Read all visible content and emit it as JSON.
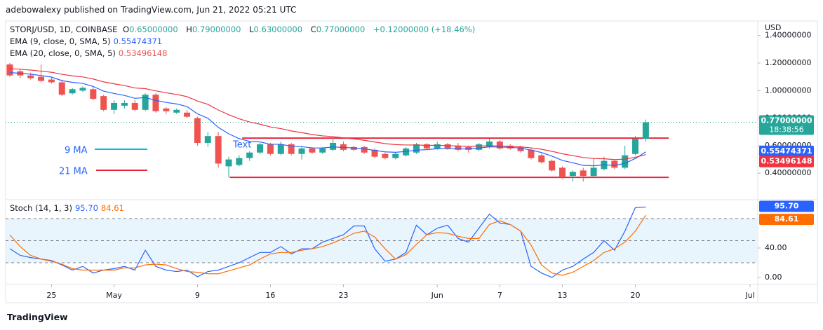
{
  "header": {
    "published": "adebowalexy published on TradingView.com, Jun 21, 2022 05:21 UTC"
  },
  "footer": "TradingView",
  "chart_data": [
    {
      "type": "candlestick",
      "title": "STORJ/USD, 1D, COINBASE",
      "currency": "USD",
      "ohlc": [
        {
          "label": "O",
          "value": "0.65000000"
        },
        {
          "label": "H",
          "value": "0.79000000"
        },
        {
          "label": "L",
          "value": "0.63000000"
        },
        {
          "label": "C",
          "value": "0.77000000"
        }
      ],
      "change": "+0.12000000 (+18.46%)",
      "x": [
        0,
        1,
        2,
        3,
        4,
        5,
        6,
        7,
        8,
        9,
        10,
        11,
        12,
        13,
        14,
        15,
        16,
        17,
        18,
        19,
        20,
        21,
        22,
        23,
        24,
        25,
        26,
        27,
        28,
        29,
        30,
        31,
        32,
        33,
        34,
        35,
        36,
        37,
        38,
        39,
        40,
        41,
        42,
        43,
        44,
        45,
        46,
        47,
        48,
        49,
        50,
        51,
        52,
        53,
        54,
        55,
        56,
        57,
        58,
        59,
        60,
        61
      ],
      "open": [
        1.19,
        1.14,
        1.11,
        1.1,
        1.08,
        1.06,
        0.98,
        1.0,
        1.01,
        0.96,
        0.86,
        0.89,
        0.91,
        0.86,
        0.97,
        0.87,
        0.84,
        0.84,
        0.8,
        0.62,
        0.67,
        0.45,
        0.46,
        0.51,
        0.55,
        0.61,
        0.54,
        0.61,
        0.54,
        0.58,
        0.55,
        0.57,
        0.61,
        0.59,
        0.59,
        0.57,
        0.54,
        0.51,
        0.53,
        0.55,
        0.61,
        0.58,
        0.61,
        0.6,
        0.59,
        0.57,
        0.59,
        0.63,
        0.6,
        0.59,
        0.57,
        0.53,
        0.49,
        0.44,
        0.38,
        0.42,
        0.38,
        0.43,
        0.49,
        0.44,
        0.54,
        0.65
      ],
      "high": [
        1.2,
        1.16,
        1.13,
        1.19,
        1.1,
        1.08,
        1.02,
        1.03,
        1.03,
        0.97,
        0.93,
        0.93,
        0.93,
        0.98,
        0.98,
        0.88,
        0.87,
        0.86,
        0.81,
        0.7,
        0.7,
        0.52,
        0.53,
        0.56,
        0.62,
        0.62,
        0.63,
        0.62,
        0.59,
        0.59,
        0.59,
        0.66,
        0.63,
        0.6,
        0.6,
        0.58,
        0.55,
        0.55,
        0.59,
        0.62,
        0.62,
        0.63,
        0.62,
        0.62,
        0.6,
        0.62,
        0.65,
        0.64,
        0.61,
        0.6,
        0.58,
        0.54,
        0.5,
        0.45,
        0.42,
        0.44,
        0.51,
        0.52,
        0.5,
        0.6,
        0.67,
        0.79
      ],
      "low": [
        1.1,
        1.09,
        1.08,
        1.06,
        1.05,
        0.96,
        0.97,
        0.99,
        0.93,
        0.85,
        0.83,
        0.87,
        0.85,
        0.85,
        0.84,
        0.83,
        0.83,
        0.8,
        0.6,
        0.59,
        0.44,
        0.37,
        0.45,
        0.49,
        0.54,
        0.53,
        0.53,
        0.53,
        0.5,
        0.54,
        0.54,
        0.56,
        0.56,
        0.56,
        0.54,
        0.51,
        0.5,
        0.5,
        0.52,
        0.54,
        0.57,
        0.57,
        0.57,
        0.56,
        0.55,
        0.56,
        0.58,
        0.57,
        0.57,
        0.55,
        0.5,
        0.47,
        0.41,
        0.36,
        0.34,
        0.34,
        0.37,
        0.42,
        0.43,
        0.43,
        0.53,
        0.63
      ],
      "close": [
        1.11,
        1.11,
        1.09,
        1.07,
        1.06,
        0.97,
        1.01,
        1.02,
        0.94,
        0.86,
        0.91,
        0.91,
        0.86,
        0.97,
        0.85,
        0.85,
        0.86,
        0.81,
        0.62,
        0.67,
        0.47,
        0.5,
        0.51,
        0.55,
        0.61,
        0.54,
        0.61,
        0.54,
        0.58,
        0.55,
        0.58,
        0.62,
        0.57,
        0.57,
        0.55,
        0.52,
        0.51,
        0.54,
        0.58,
        0.61,
        0.58,
        0.61,
        0.58,
        0.57,
        0.57,
        0.61,
        0.63,
        0.58,
        0.58,
        0.56,
        0.51,
        0.48,
        0.42,
        0.37,
        0.41,
        0.38,
        0.44,
        0.49,
        0.44,
        0.53,
        0.65,
        0.77
      ],
      "up_color": "#26a69a",
      "down_color": "#ef5350",
      "last_price": {
        "label": "0.77000000",
        "countdown": "18:38:56"
      },
      "series": [
        {
          "name": "EMA (9, close, 0, SMA, 5)",
          "color": "#2962ff",
          "last_label": "0.55474371",
          "values": [
            1.13,
            1.126,
            1.119,
            1.109,
            1.098,
            1.072,
            1.06,
            1.052,
            1.03,
            0.996,
            0.979,
            0.965,
            0.944,
            0.949,
            0.929,
            0.914,
            0.903,
            0.884,
            0.831,
            0.799,
            0.733,
            0.686,
            0.651,
            0.631,
            0.627,
            0.61,
            0.61,
            0.596,
            0.593,
            0.584,
            0.583,
            0.591,
            0.587,
            0.584,
            0.577,
            0.566,
            0.555,
            0.552,
            0.558,
            0.568,
            0.571,
            0.578,
            0.579,
            0.577,
            0.576,
            0.583,
            0.592,
            0.59,
            0.588,
            0.582,
            0.568,
            0.55,
            0.524,
            0.493,
            0.476,
            0.457,
            0.454,
            0.461,
            0.457,
            0.472,
            0.507,
            0.55474371
          ]
        },
        {
          "name": "EMA (20, close, 0, SMA, 5)",
          "color": "#ef3340",
          "last_label": "0.53496148",
          "values": [
            1.16,
            1.155,
            1.149,
            1.141,
            1.133,
            1.118,
            1.107,
            1.099,
            1.084,
            1.063,
            1.049,
            1.036,
            1.019,
            1.014,
            0.998,
            0.984,
            0.972,
            0.956,
            0.924,
            0.9,
            0.859,
            0.825,
            0.795,
            0.772,
            0.756,
            0.736,
            0.724,
            0.707,
            0.695,
            0.681,
            0.671,
            0.666,
            0.657,
            0.649,
            0.639,
            0.627,
            0.615,
            0.608,
            0.605,
            0.605,
            0.602,
            0.603,
            0.6,
            0.598,
            0.595,
            0.597,
            0.6,
            0.598,
            0.596,
            0.592,
            0.584,
            0.574,
            0.559,
            0.541,
            0.528,
            0.514,
            0.507,
            0.505,
            0.499,
            0.502,
            0.516,
            0.53496148
          ]
        }
      ],
      "levels": [
        0.655,
        0.37
      ],
      "annotations": [
        "Text",
        "9 MA",
        "21 MA"
      ],
      "xlim": [
        -0.4,
        71.74
      ],
      "ylim": [
        0.213,
        1.505
      ],
      "yticks": [
        {
          "value": 1.4,
          "label": "1.40000000"
        },
        {
          "value": 1.2,
          "label": "1.20000000"
        },
        {
          "value": 1.0,
          "label": "1.00000000"
        },
        {
          "value": 0.8,
          "label": "0.80000000"
        },
        {
          "value": 0.6,
          "label": "0.60000000"
        },
        {
          "value": 0.4,
          "label": "0.40000000"
        }
      ]
    },
    {
      "type": "line",
      "title": "Stoch (14, 1, 3)",
      "x": [
        0,
        1,
        2,
        3,
        4,
        5,
        6,
        7,
        8,
        9,
        10,
        11,
        12,
        13,
        14,
        15,
        16,
        17,
        18,
        19,
        20,
        21,
        22,
        23,
        24,
        25,
        26,
        27,
        28,
        29,
        30,
        31,
        32,
        33,
        34,
        35,
        36,
        37,
        38,
        39,
        40,
        41,
        42,
        43,
        44,
        45,
        46,
        47,
        48,
        49,
        50,
        51,
        52,
        53,
        54,
        55,
        56,
        57,
        58,
        59,
        60,
        61
      ],
      "series": [
        {
          "color": "#2962ff",
          "last_label": "95.70",
          "values": [
            39,
            30,
            27,
            25,
            23,
            17,
            10,
            15,
            6,
            10,
            12,
            15,
            10,
            37,
            15,
            10,
            8,
            10,
            1,
            8,
            10,
            15,
            20,
            27,
            34,
            34,
            42,
            32,
            39,
            39,
            48,
            53,
            58,
            70,
            70,
            39,
            22,
            25,
            34,
            71,
            58,
            67,
            71,
            53,
            48,
            67,
            86,
            74,
            72,
            63,
            15,
            6,
            0,
            10,
            15,
            25,
            34,
            50,
            37,
            63,
            95,
            95.7
          ]
        },
        {
          "color": "#ff6d00",
          "last_label": "84.61",
          "values": [
            58,
            42,
            30,
            25,
            22,
            18,
            12,
            10,
            10,
            10,
            10,
            13,
            13,
            17,
            18,
            17,
            12,
            8,
            7,
            5,
            5,
            9,
            13,
            17,
            25,
            32,
            34,
            34,
            37,
            39,
            42,
            47,
            53,
            60,
            63,
            55,
            39,
            25,
            31,
            45,
            58,
            61,
            60,
            56,
            53,
            53,
            72,
            77,
            72,
            63,
            44,
            17,
            6,
            3,
            7,
            15,
            23,
            34,
            39,
            48,
            63,
            84.61
          ]
        }
      ],
      "band": [
        20,
        80
      ],
      "levels": [
        80,
        50,
        20
      ],
      "xlim": [
        -0.4,
        71.74
      ],
      "ylim": [
        -8.6,
        104.8
      ],
      "yticks": [
        {
          "value": 40,
          "label": "40.00"
        },
        {
          "value": 0,
          "label": "0.00"
        }
      ],
      "xticks": [
        {
          "value": 4,
          "label": "25"
        },
        {
          "value": 10,
          "label": "May"
        },
        {
          "value": 18,
          "label": "9"
        },
        {
          "value": 25,
          "label": "16"
        },
        {
          "value": 32,
          "label": "23"
        },
        {
          "value": 41,
          "label": "Jun"
        },
        {
          "value": 47,
          "label": "7"
        },
        {
          "value": 53,
          "label": "13"
        },
        {
          "value": 60,
          "label": "20"
        },
        {
          "value": 71,
          "label": "Jul"
        }
      ]
    }
  ]
}
